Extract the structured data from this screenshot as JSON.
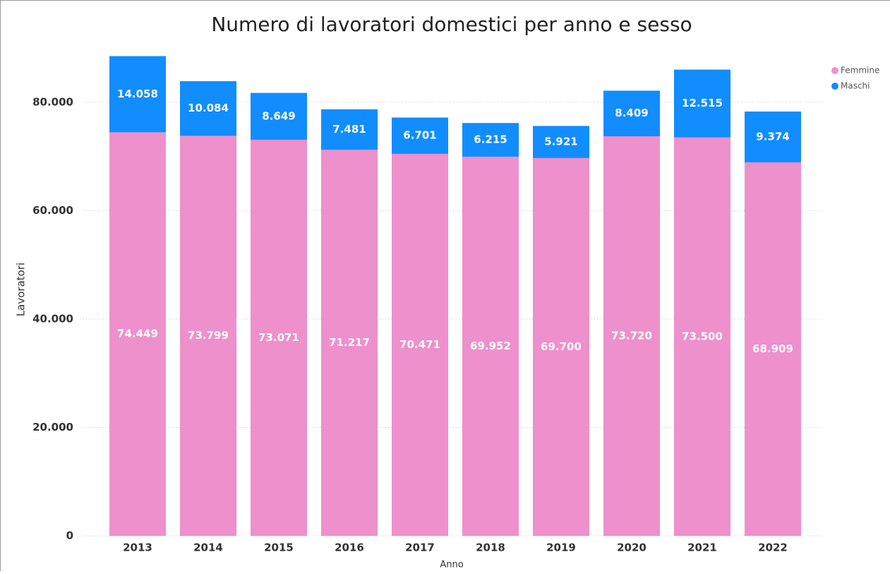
{
  "chart_data": {
    "type": "stacked_bar",
    "title": "Numero di lavoratori domestici per anno e sesso",
    "x_label": "Anno",
    "y_label": "Lavoratori",
    "categories": [
      "2013",
      "2014",
      "2015",
      "2016",
      "2017",
      "2018",
      "2019",
      "2020",
      "2021",
      "2022"
    ],
    "series": [
      {
        "name": "Femmine",
        "color": "#ee90cc",
        "values": [
          74449,
          73799,
          73071,
          71217,
          70471,
          69952,
          69700,
          73720,
          73500,
          68909
        ],
        "value_labels": [
          "74.449",
          "73.799",
          "73.071",
          "71.217",
          "70.471",
          "69.952",
          "69.700",
          "73.720",
          "73.500",
          "68.909"
        ]
      },
      {
        "name": "Maschi",
        "color": "#118dff",
        "values": [
          14058,
          10084,
          8649,
          7481,
          6701,
          6215,
          5921,
          8409,
          12515,
          9374
        ],
        "value_labels": [
          "14.058",
          "10.084",
          "8.649",
          "7.481",
          "6.701",
          "6.215",
          "5.921",
          "8.409",
          "12.515",
          "9.374"
        ]
      }
    ],
    "ylim": [
      0,
      90000
    ],
    "yticks": [
      0,
      {
        "value": 20000,
        "label": "20.000"
      },
      {
        "value": 40000,
        "label": "40.000"
      },
      {
        "value": 60000,
        "label": "60.000"
      },
      {
        "value": 80000,
        "label": "80.000"
      }
    ],
    "grid": true,
    "legend": "top-right"
  }
}
